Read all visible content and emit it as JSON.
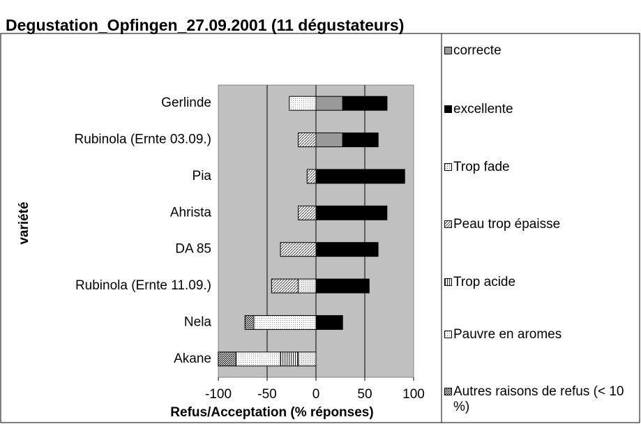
{
  "chart_data": {
    "type": "bar",
    "orientation": "horizontal",
    "stacked": true,
    "title": "Degustation_Opfingen_27.09.2001 (11 dégustateurs)",
    "x_label": "Refus/Acceptation (% réponses)",
    "y_label": "variété",
    "categories": [
      "Gerlinde",
      "Rubinola (Ernte 03.09.)",
      "Pia",
      "Ahrista",
      "DA 85",
      "Rubinola (Ernte 11.09.)",
      "Nela",
      "Akane"
    ],
    "series": [
      {
        "name": "correcte",
        "color": "#999999",
        "values": [
          27.3,
          27.3,
          null,
          null,
          null,
          null,
          null,
          null
        ]
      },
      {
        "name": "excellente",
        "color": "#000000",
        "values": [
          45.5,
          36.4,
          90.9,
          72.7,
          63.6,
          54.5,
          27.3,
          null
        ]
      },
      {
        "name": "Trop fade",
        "color": "#aaaaaa",
        "values": [
          null,
          null,
          null,
          null,
          null,
          -18.2,
          null,
          -18.2
        ]
      },
      {
        "name": "Peau trop épaisse",
        "color": "#888888",
        "values": [
          null,
          -18.2,
          -9.1,
          -18.2,
          -36.4,
          -27.3,
          null,
          null
        ]
      },
      {
        "name": "Trop acide",
        "color": "#555555",
        "values": [
          null,
          null,
          null,
          null,
          null,
          null,
          null,
          -18.2
        ]
      },
      {
        "name": "Pauvre en aromes",
        "color": "#bbbbbb",
        "values": [
          -27.3,
          null,
          null,
          null,
          null,
          null,
          -63.6,
          -45.5
        ]
      },
      {
        "name": "Autres raisons de refus (< 10 %)",
        "color": "#444444",
        "values": [
          null,
          null,
          null,
          null,
          null,
          null,
          -9.1,
          -18.2
        ]
      }
    ],
    "xlim": [
      -100,
      100
    ],
    "xticks": [
      -100,
      -50,
      0,
      50,
      100
    ],
    "grid": true
  }
}
